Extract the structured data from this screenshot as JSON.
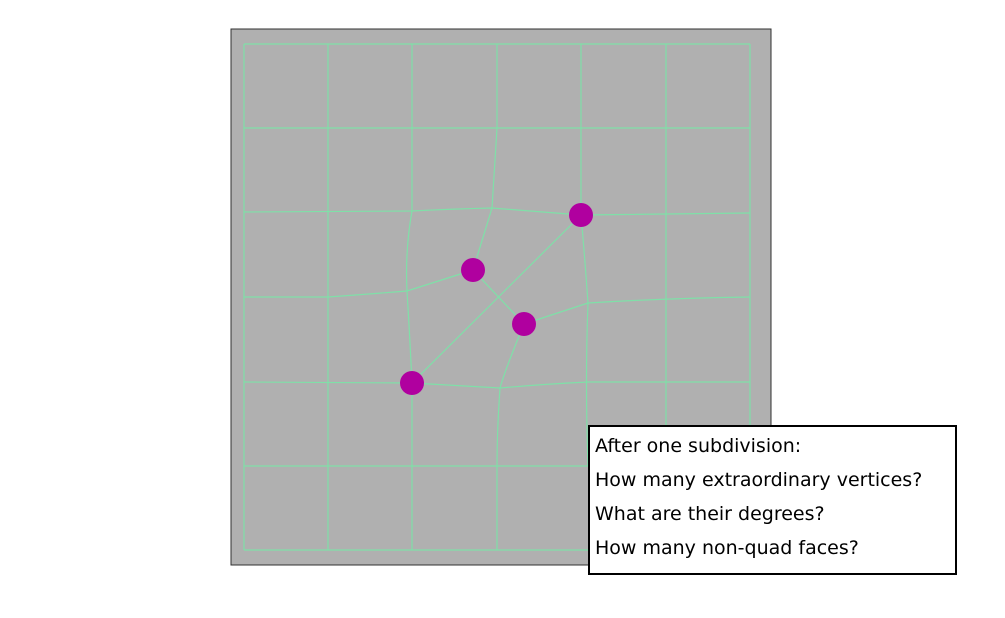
{
  "colors": {
    "background": "#ffffff",
    "mesh_face": "#b0b0b0",
    "mesh_border": "#303030",
    "edge": "#7fe0a8",
    "extraordinary_vertex": "#b0009f",
    "box_border": "#000000",
    "text": "#000000"
  },
  "question": {
    "lines": [
      "After one subdivision:",
      "How many extraordinary vertices?",
      "What are their degrees?",
      "How many non-quad faces?"
    ]
  }
}
